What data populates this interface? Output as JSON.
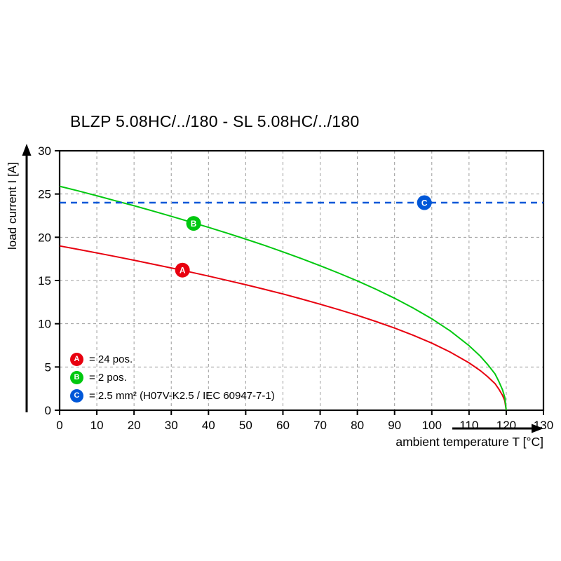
{
  "title": "BLZP 5.08HC/../180 - SL 5.08HC/../180",
  "chart_data": {
    "type": "line",
    "title": "BLZP 5.08HC/../180 - SL 5.08HC/../180",
    "xlabel": "ambient temperature T [°C]",
    "ylabel": "load current I [A]",
    "xlim": [
      0,
      130
    ],
    "ylim": [
      0,
      30
    ],
    "xticks": [
      0,
      10,
      20,
      30,
      40,
      50,
      60,
      70,
      80,
      90,
      100,
      110,
      120,
      130
    ],
    "yticks": [
      0,
      5,
      10,
      15,
      20,
      25,
      30
    ],
    "grid": true,
    "grid_style": "dashed",
    "legend_position": "lower-left",
    "series": [
      {
        "name": "A",
        "label": "= 24 pos.",
        "color": "#e8000f",
        "style": "solid",
        "marker": {
          "x": 33,
          "y": 16.2
        },
        "points": [
          [
            0,
            19
          ],
          [
            5,
            18.6
          ],
          [
            10,
            18.19
          ],
          [
            15,
            17.77
          ],
          [
            20,
            17.34
          ],
          [
            25,
            16.9
          ],
          [
            30,
            16.45
          ],
          [
            35,
            15.99
          ],
          [
            40,
            15.51
          ],
          [
            45,
            15.02
          ],
          [
            50,
            14.51
          ],
          [
            55,
            13.99
          ],
          [
            60,
            13.44
          ],
          [
            65,
            12.86
          ],
          [
            70,
            12.26
          ],
          [
            75,
            11.63
          ],
          [
            80,
            10.97
          ],
          [
            85,
            10.26
          ],
          [
            90,
            9.5
          ],
          [
            95,
            8.67
          ],
          [
            100,
            7.76
          ],
          [
            105,
            6.71
          ],
          [
            110,
            5.48
          ],
          [
            113,
            4.59
          ],
          [
            115,
            3.88
          ],
          [
            117,
            3.07
          ],
          [
            118,
            2.45
          ],
          [
            119,
            1.73
          ],
          [
            119.6,
            1.1
          ],
          [
            120,
            0
          ]
        ]
      },
      {
        "name": "B",
        "label": "= 2 pos.",
        "color": "#00c80f",
        "style": "solid",
        "marker": {
          "x": 36,
          "y": 21.6
        },
        "points": [
          [
            0,
            25.9
          ],
          [
            5,
            25.36
          ],
          [
            10,
            24.8
          ],
          [
            15,
            24.22
          ],
          [
            20,
            23.64
          ],
          [
            25,
            23.04
          ],
          [
            30,
            22.43
          ],
          [
            35,
            21.79
          ],
          [
            40,
            21.15
          ],
          [
            45,
            20.48
          ],
          [
            50,
            19.78
          ],
          [
            55,
            19.07
          ],
          [
            60,
            18.31
          ],
          [
            65,
            17.53
          ],
          [
            70,
            16.71
          ],
          [
            75,
            15.85
          ],
          [
            80,
            14.95
          ],
          [
            85,
            13.99
          ],
          [
            90,
            12.95
          ],
          [
            95,
            11.82
          ],
          [
            100,
            10.57
          ],
          [
            105,
            9.15
          ],
          [
            110,
            7.47
          ],
          [
            113,
            6.26
          ],
          [
            115,
            5.29
          ],
          [
            117,
            4.19
          ],
          [
            118,
            3.34
          ],
          [
            119,
            2.36
          ],
          [
            119.6,
            1.5
          ],
          [
            120,
            0
          ]
        ]
      },
      {
        "name": "C",
        "label": "= 2.5 mm² (H07V-K2.5 / IEC 60947-7-1)",
        "color": "#0057d8",
        "style": "dashed",
        "dash": "9 7",
        "width": 2.5,
        "marker": {
          "x": 98,
          "y": 24
        },
        "points": [
          [
            0,
            24
          ],
          [
            130,
            24
          ]
        ]
      }
    ]
  }
}
